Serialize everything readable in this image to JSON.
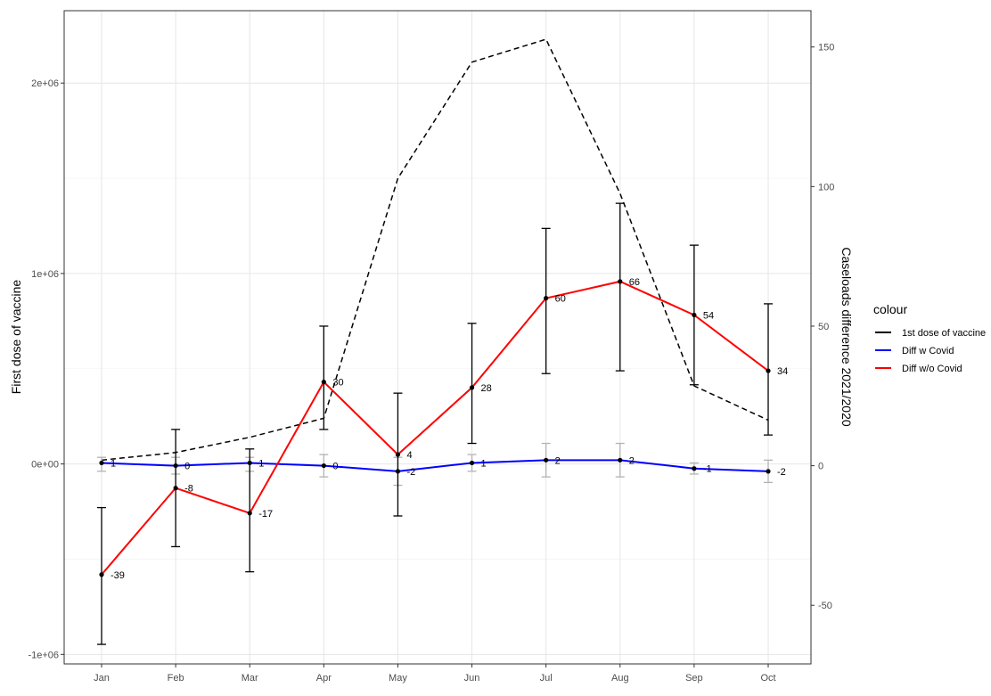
{
  "chart_data": {
    "type": "line",
    "categories": [
      "Jan",
      "Feb",
      "Mar",
      "Apr",
      "May",
      "Jun",
      "Jul",
      "Aug",
      "Sep",
      "Oct"
    ],
    "y_left": {
      "label": "First dose of vaccine",
      "lim": [
        -1050000,
        2380000
      ],
      "ticks": [
        -1000000,
        0,
        1000000,
        2000000
      ],
      "tick_labels": [
        "-1e+06",
        "0e+00",
        "1e+06",
        "2e+06"
      ]
    },
    "y_right": {
      "label": "Caseloads difference 2021/2020",
      "lim": [
        -71,
        163
      ],
      "ticks": [
        -50,
        0,
        50,
        100,
        150
      ],
      "tick_labels": [
        "-50",
        "0",
        "50",
        "100",
        "150"
      ]
    },
    "series": [
      {
        "name": "1st dose of vaccine",
        "axis": "left",
        "color": "#000000",
        "linestyle": "dashed",
        "values": [
          20000,
          60000,
          140000,
          240000,
          1500000,
          2110000,
          2230000,
          1420000,
          410000,
          230000
        ]
      },
      {
        "name": "Diff w Covid",
        "axis": "right",
        "color": "#0000ff",
        "linestyle": "solid",
        "values": [
          1,
          0,
          1,
          0,
          -2,
          1,
          2,
          2,
          -1,
          -2
        ],
        "labels": [
          "1",
          "0",
          "1",
          "0",
          "-2",
          "1",
          "2",
          "2",
          "-1",
          "-2"
        ],
        "error_low": [
          -2,
          -3,
          -2,
          -4,
          -7,
          -2,
          -4,
          -4,
          -3,
          -6
        ],
        "error_high": [
          3,
          3,
          3,
          4,
          3,
          4,
          8,
          8,
          1,
          2
        ]
      },
      {
        "name": "Diff w/o Covid",
        "axis": "right",
        "color": "#ff0000",
        "linestyle": "solid",
        "values": [
          -39,
          -8,
          -17,
          30,
          4,
          28,
          60,
          66,
          54,
          34
        ],
        "labels": [
          "-39",
          "-8",
          "-17",
          "30",
          "4",
          "28",
          "60",
          "66",
          "54",
          "34"
        ],
        "error_low": [
          -64,
          -29,
          -38,
          13,
          -18,
          8,
          33,
          34,
          29,
          11
        ],
        "error_high": [
          -15,
          13,
          6,
          50,
          26,
          51,
          85,
          94,
          79,
          58
        ]
      }
    ],
    "legend": {
      "title": "colour",
      "placement": "right",
      "entries": [
        "1st dose of vaccine",
        "Diff w Covid",
        "Diff w/o Covid"
      ]
    },
    "grid": true,
    "panel_border": true
  }
}
